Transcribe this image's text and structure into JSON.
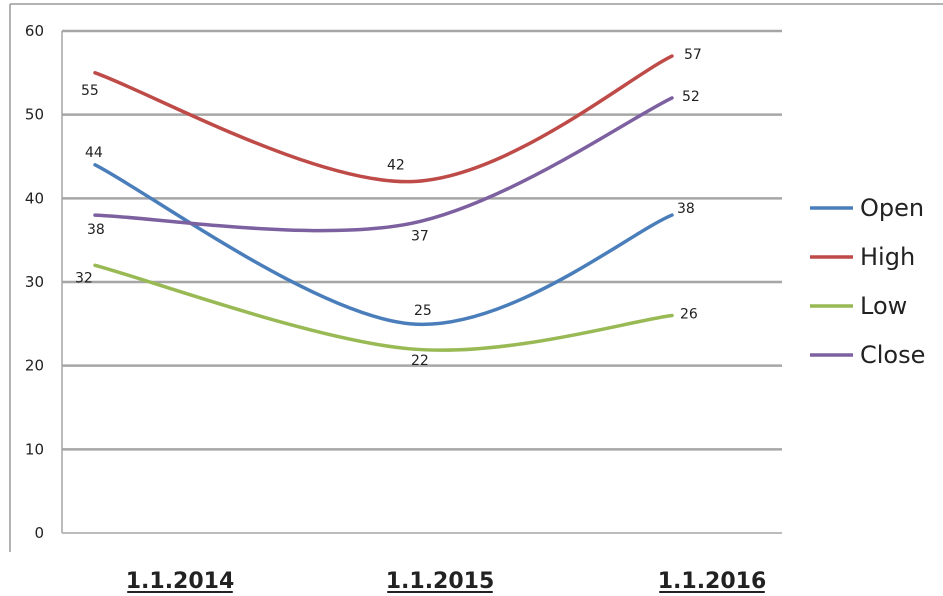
{
  "chart_data": {
    "type": "line",
    "categories": [
      "1.1.2014",
      "1.1.2015",
      "1.1.2016"
    ],
    "ylim": [
      0,
      60
    ],
    "yticks": [
      0,
      10,
      20,
      30,
      40,
      50,
      60
    ],
    "grid": true,
    "smooth": true,
    "legend_position": "right",
    "series": [
      {
        "name": "Open",
        "values": [
          44,
          25,
          38
        ],
        "color": "#4a7ebb"
      },
      {
        "name": "High",
        "values": [
          55,
          42,
          57
        ],
        "color": "#be4b48"
      },
      {
        "name": "Low",
        "values": [
          32,
          22,
          26
        ],
        "color": "#98b954"
      },
      {
        "name": "Close",
        "values": [
          38,
          37,
          52
        ],
        "color": "#7d60a0"
      }
    ]
  }
}
